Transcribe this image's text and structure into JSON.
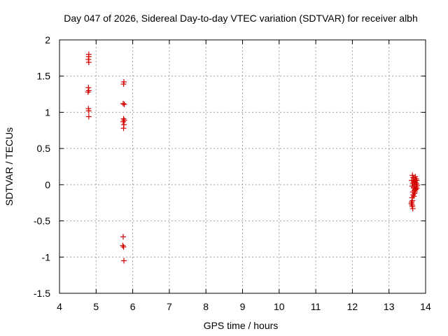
{
  "chart_data": {
    "type": "scatter",
    "title": "Day 047 of 2026, Sidereal Day-to-day VTEC variation (SDTVAR) for receiver albh",
    "xlabel": "GPS time / hours",
    "ylabel": "SDTVAR / TECUs",
    "xlim": [
      4,
      14
    ],
    "ylim": [
      -1.5,
      2
    ],
    "xticks": [
      "4",
      "5",
      "6",
      "7",
      "8",
      "9",
      "10",
      "11",
      "12",
      "13",
      "14"
    ],
    "yticks": [
      "2",
      "1.5",
      "1",
      "0.5",
      "0",
      "-0.5",
      "-1",
      "-1.5"
    ],
    "grid": true,
    "marker": "+",
    "color": "#d40000",
    "series": [
      {
        "points": [
          [
            4.8,
            1.8
          ],
          [
            4.8,
            1.77
          ],
          [
            4.79,
            1.73
          ],
          [
            4.8,
            1.69
          ],
          [
            4.79,
            1.34
          ],
          [
            4.8,
            1.3
          ],
          [
            4.78,
            1.28
          ],
          [
            4.79,
            1.05
          ],
          [
            4.8,
            1.02
          ],
          [
            4.8,
            0.94
          ],
          [
            5.76,
            1.42
          ],
          [
            5.75,
            1.39
          ],
          [
            5.74,
            1.12
          ],
          [
            5.77,
            1.11
          ],
          [
            5.75,
            0.91
          ],
          [
            5.77,
            0.89
          ],
          [
            5.74,
            0.87
          ],
          [
            5.76,
            0.83
          ],
          [
            5.75,
            0.78
          ],
          [
            5.74,
            -0.72
          ],
          [
            5.73,
            -0.84
          ],
          [
            5.75,
            -0.86
          ],
          [
            5.76,
            -1.05
          ],
          [
            13.64,
            0.13
          ],
          [
            13.66,
            0.1
          ],
          [
            13.62,
            0.06
          ],
          [
            13.68,
            0.04
          ],
          [
            13.65,
            0.02
          ],
          [
            13.7,
            0.0
          ],
          [
            13.63,
            -0.02
          ],
          [
            13.67,
            -0.04
          ],
          [
            13.72,
            -0.06
          ],
          [
            13.69,
            -0.08
          ],
          [
            13.65,
            -0.1
          ],
          [
            13.66,
            -0.14
          ],
          [
            13.63,
            -0.18
          ],
          [
            13.64,
            -0.22
          ],
          [
            13.62,
            -0.24
          ],
          [
            13.61,
            -0.26
          ],
          [
            13.63,
            -0.28
          ],
          [
            13.64,
            -0.3
          ],
          [
            13.65,
            -0.33
          ],
          [
            13.72,
            0.11
          ],
          [
            13.74,
            0.08
          ],
          [
            13.76,
            0.06
          ],
          [
            13.73,
            0.03
          ],
          [
            13.75,
            0.01
          ],
          [
            13.77,
            -0.01
          ],
          [
            13.74,
            -0.03
          ],
          [
            13.76,
            -0.05
          ],
          [
            13.73,
            -0.07
          ],
          [
            13.71,
            -0.1
          ],
          [
            13.7,
            -0.12
          ],
          [
            13.68,
            -0.16
          ],
          [
            13.69,
            0.08
          ],
          [
            13.71,
            0.05
          ]
        ]
      }
    ]
  }
}
